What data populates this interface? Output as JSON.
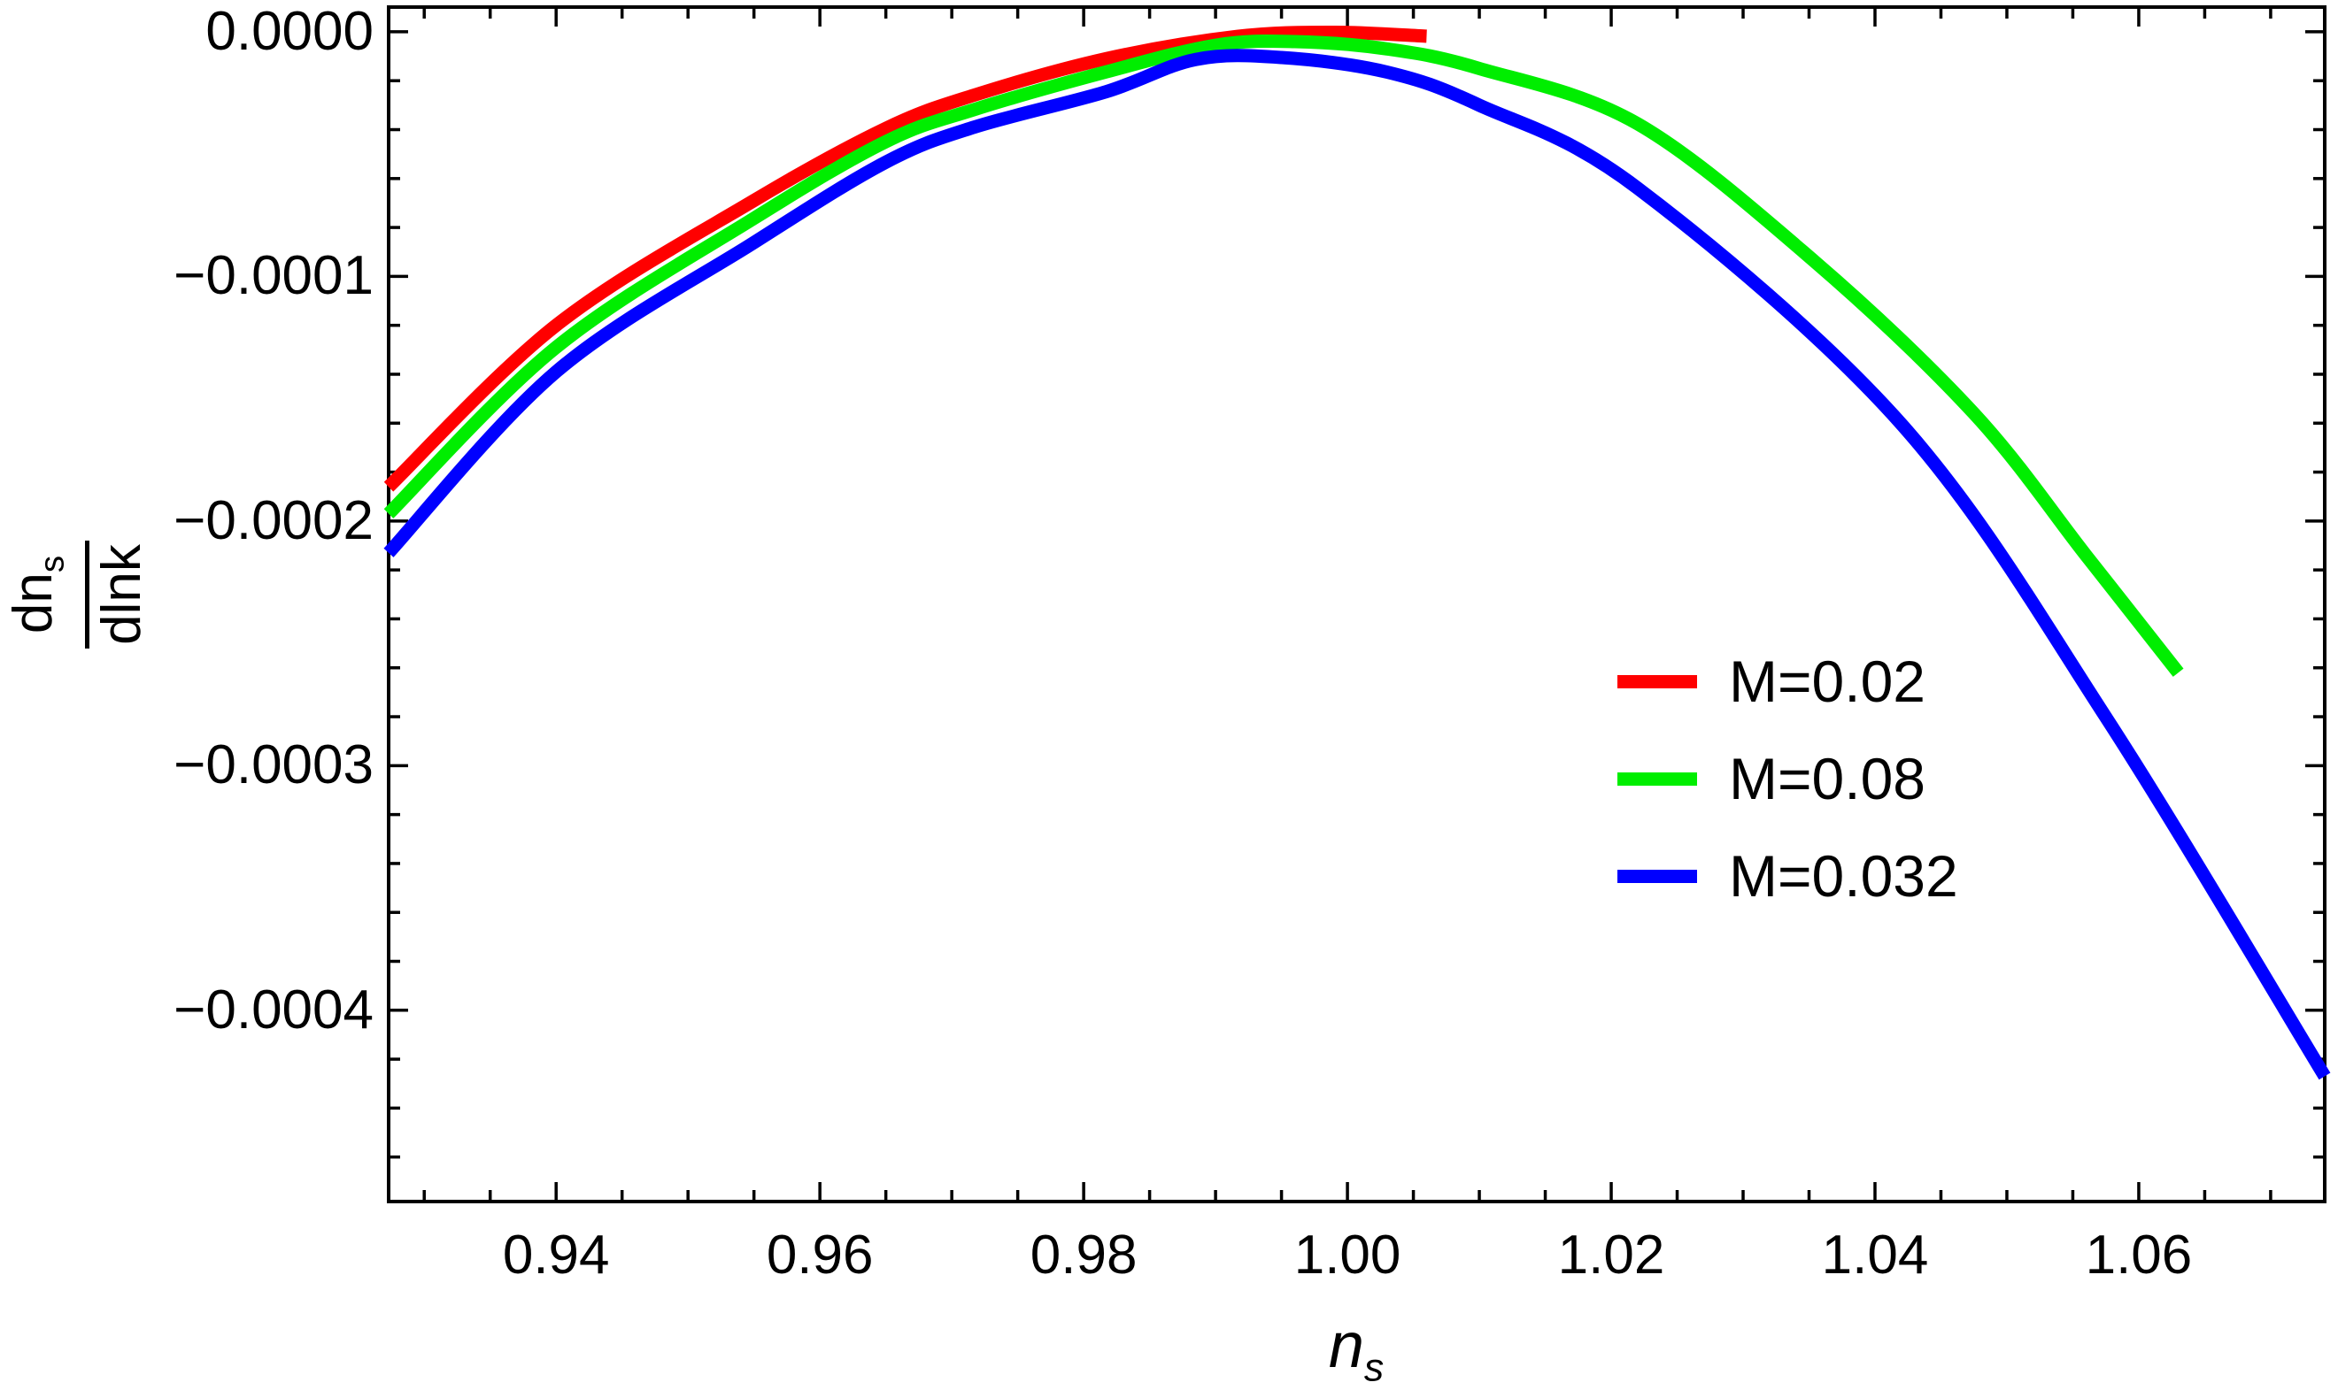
{
  "page": {
    "background": "#ffffff"
  },
  "plot": {
    "frame_color": "#000000",
    "tick_color": "#000000",
    "x_axis": {
      "range": [
        0.9273,
        1.0741
      ],
      "major_ticks": [
        0.94,
        0.96,
        0.98,
        1.0,
        1.02,
        1.04,
        1.06
      ],
      "tick_labels": [
        "0.94",
        "0.96",
        "0.98",
        "1.00",
        "1.02",
        "1.04",
        "1.06"
      ],
      "minor_step": 0.005,
      "label_main": "n",
      "label_sub": "s"
    },
    "y_axis": {
      "range": [
        -0.0004782,
        1.01e-05
      ],
      "major_ticks": [
        0.0,
        -0.0001,
        -0.0002,
        -0.0003,
        -0.0004
      ],
      "tick_labels": [
        "0.0000",
        "−0.0001",
        "−0.0002",
        "−0.0003",
        "−0.0004"
      ],
      "minor_step": 2e-05,
      "label_numerator_main": "dn",
      "label_numerator_sub": "s",
      "label_denominator": "dlnk"
    }
  },
  "legend": {
    "items": [
      {
        "label": "M=0.02",
        "color": "#ff0000"
      },
      {
        "label": "M=0.08",
        "color": "#00ee00"
      },
      {
        "label": "M=0.032",
        "color": "#0000ff"
      }
    ]
  },
  "chart_data": {
    "type": "line",
    "title": "",
    "xlabel": "n_s",
    "ylabel": "dn_s/dlnk",
    "xlim": [
      0.9273,
      1.0741
    ],
    "ylim": [
      -0.0004782,
      1.01e-05
    ],
    "grid": false,
    "legend_position": "right-center",
    "series": [
      {
        "name": "M=0.02",
        "color": "#ff0000",
        "points": [
          [
            0.9273,
            -0.000186
          ],
          [
            0.94,
            -0.00012
          ],
          [
            0.9549,
            -6.93e-05
          ],
          [
            0.965,
            -3.95e-05
          ],
          [
            0.9717,
            -2.59e-05
          ],
          [
            0.9817,
            -1.1e-05
          ],
          [
            0.9916,
            -1.9e-06
          ],
          [
            0.999,
            -2e-07
          ],
          [
            1.006,
            -1.8e-06
          ]
        ]
      },
      {
        "name": "M=0.08",
        "color": "#00ee00",
        "points": [
          [
            0.9273,
            -0.000197
          ],
          [
            0.94,
            -0.000129
          ],
          [
            0.9549,
            -7.66e-05
          ],
          [
            0.965,
            -4.49e-05
          ],
          [
            0.9717,
            -3.18e-05
          ],
          [
            0.9817,
            -1.64e-05
          ],
          [
            0.99,
            -5.5e-06
          ],
          [
            0.996,
            -4e-06
          ],
          [
            1.003,
            -7e-06
          ],
          [
            1.01,
            -1.5e-05
          ],
          [
            1.022,
            -3.76e-05
          ],
          [
            1.0354,
            -9.38e-05
          ],
          [
            1.0475,
            -0.000156
          ],
          [
            1.056,
            -0.000214
          ],
          [
            1.063,
            -0.000262
          ]
        ]
      },
      {
        "name": "M=0.032",
        "color": "#0000ff",
        "points": [
          [
            0.9273,
            -0.000213
          ],
          [
            0.94,
            -0.000139
          ],
          [
            0.9549,
            -8.65e-05
          ],
          [
            0.965,
            -5.33e-05
          ],
          [
            0.9717,
            -3.9e-05
          ],
          [
            0.9817,
            -2.45e-05
          ],
          [
            0.9885,
            -1.13e-05
          ],
          [
            0.995,
            -1.05e-05
          ],
          [
            1.003,
            -1.65e-05
          ],
          [
            1.01,
            -3e-05
          ],
          [
            1.022,
            -6.39e-05
          ],
          [
            1.0421,
            -0.000161
          ],
          [
            1.0576,
            -0.000281
          ],
          [
            1.0741,
            -0.000427
          ]
        ]
      }
    ]
  }
}
